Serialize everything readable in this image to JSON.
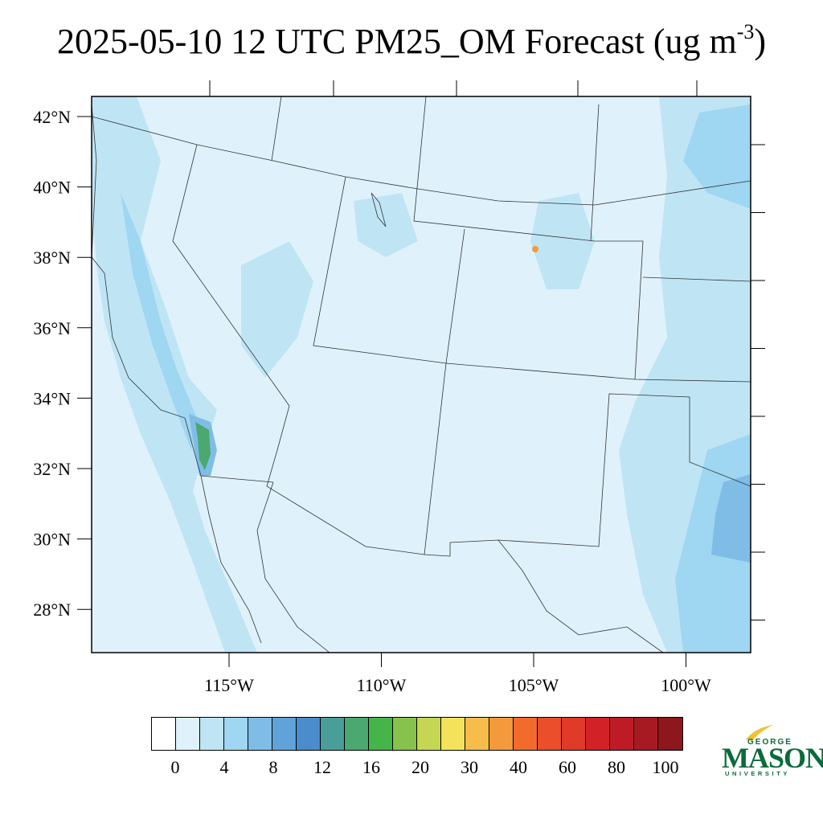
{
  "title": {
    "main": "2025-05-10 12 UTC PM25_OM Forecast (ug m",
    "superscript": "-3",
    "close": ")"
  },
  "map": {
    "lat_labels": [
      {
        "text": "42°N",
        "lat": 42
      },
      {
        "text": "40°N",
        "lat": 40
      },
      {
        "text": "38°N",
        "lat": 38
      },
      {
        "text": "36°N",
        "lat": 36
      },
      {
        "text": "34°N",
        "lat": 34
      },
      {
        "text": "32°N",
        "lat": 32
      },
      {
        "text": "30°N",
        "lat": 30
      },
      {
        "text": "28°N",
        "lat": 28
      }
    ],
    "lon_labels": [
      {
        "text": "115°W",
        "lon": -115
      },
      {
        "text": "110°W",
        "lon": -110
      },
      {
        "text": "105°W",
        "lon": -105
      },
      {
        "text": "100°W",
        "lon": -100
      }
    ],
    "colors": {
      "background_field": "#dff2fb",
      "light_plume": "#bfe5f5",
      "medium_plume": "#9fd6f1",
      "strong_plume": "#7fbde6",
      "boundary": "#333333"
    }
  },
  "colorbar": {
    "colors": [
      "#ffffff",
      "#dff2fb",
      "#bfe5f5",
      "#9fd6f1",
      "#7fbde6",
      "#5fa3d9",
      "#4a8ccc",
      "#4a9e9a",
      "#4aa870",
      "#45b54a",
      "#86c24c",
      "#c5d653",
      "#f4e35a",
      "#f6bd4b",
      "#f49a3c",
      "#f26b2c",
      "#ea4e2a",
      "#e03a28",
      "#d32128",
      "#bd1c26",
      "#a81a22",
      "#8e161d"
    ],
    "labels": [
      "0",
      "4",
      "8",
      "12",
      "16",
      "20",
      "30",
      "40",
      "60",
      "80",
      "100"
    ]
  },
  "logo": {
    "top": "GEORGE",
    "middle": "MASON",
    "bottom": "UNIVERSITY"
  }
}
